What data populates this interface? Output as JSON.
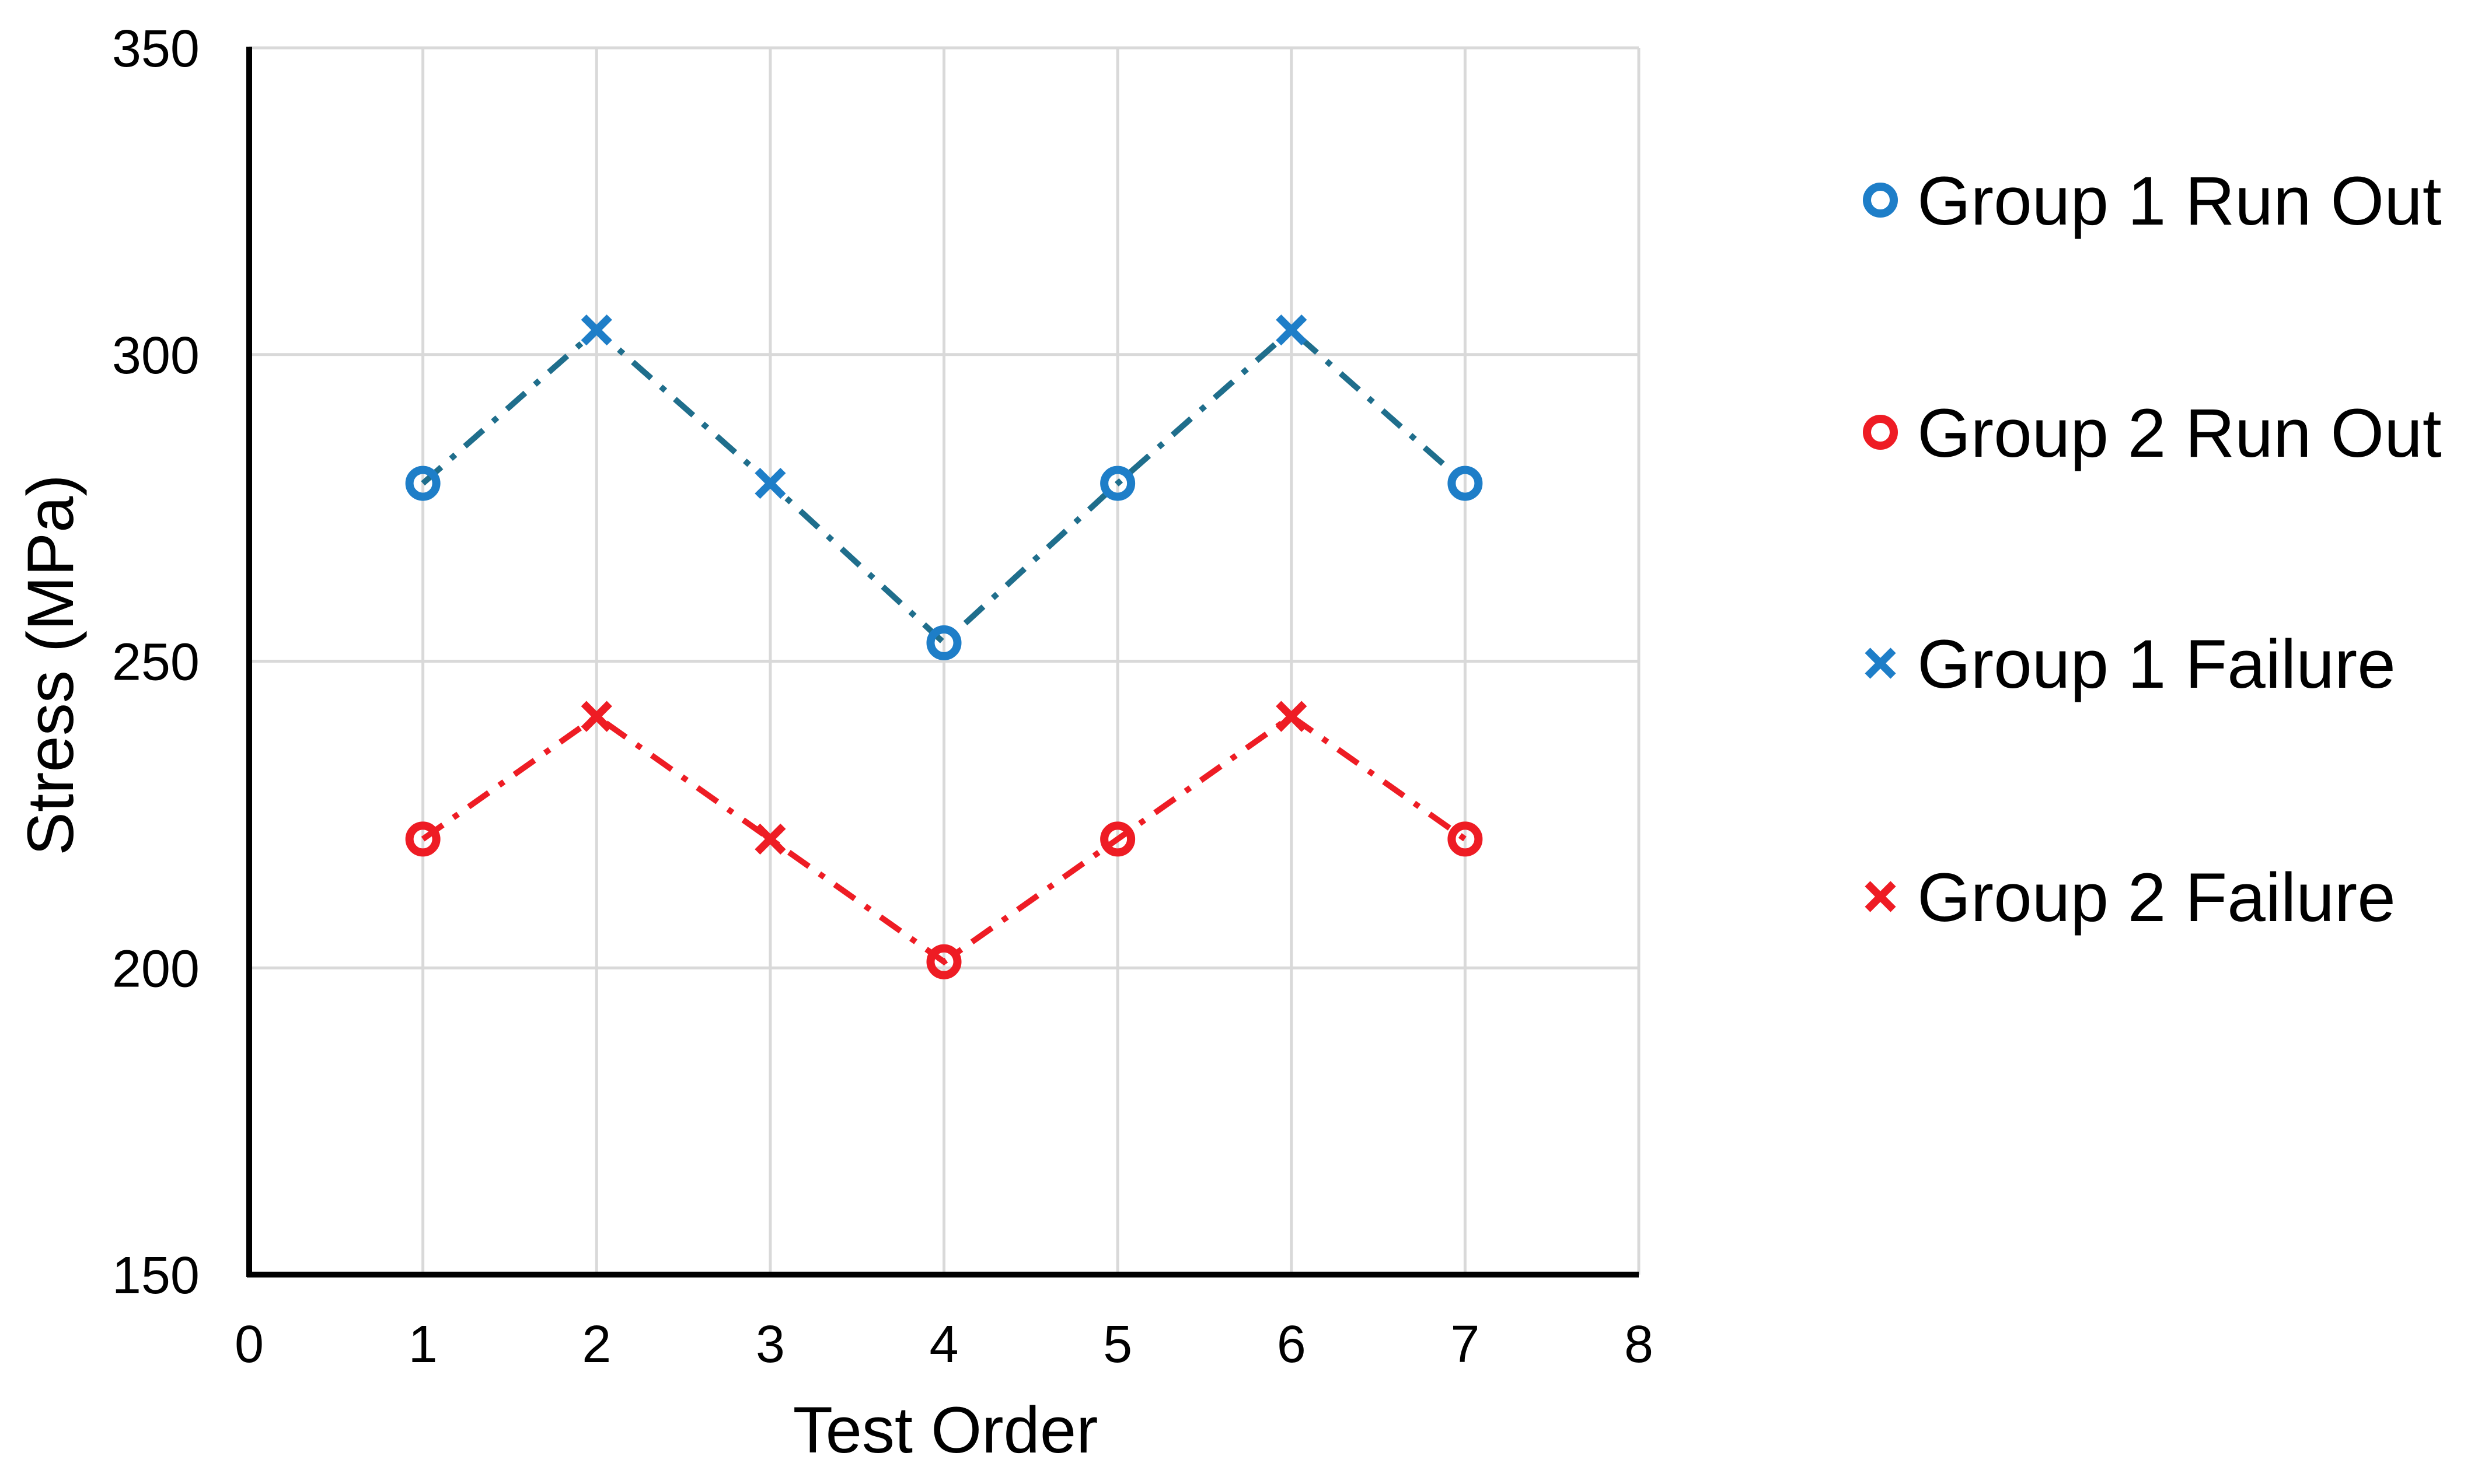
{
  "chart_data": {
    "type": "scatter",
    "title": "",
    "xlabel": "Test Order",
    "ylabel": "Stress (MPa)",
    "xlim": [
      0,
      8
    ],
    "ylim": [
      150,
      350
    ],
    "x_ticks": [
      "0",
      "1",
      "2",
      "3",
      "4",
      "5",
      "6",
      "7",
      "8"
    ],
    "y_ticks": [
      "150",
      "200",
      "250",
      "300",
      "350"
    ],
    "grid": true,
    "legend_position": "right",
    "lines": [
      {
        "group": "Group 1",
        "color": "#1f6e8c",
        "style": "dash-dot",
        "x": [
          1,
          2,
          3,
          4,
          5,
          6,
          7
        ],
        "y": [
          279,
          304,
          279,
          253,
          279,
          304,
          279
        ]
      },
      {
        "group": "Group 2",
        "color": "#ee1c24",
        "style": "dash-dot",
        "x": [
          1,
          2,
          3,
          4,
          5,
          6,
          7
        ],
        "y": [
          221,
          241,
          221,
          201,
          221,
          241,
          221
        ]
      }
    ],
    "series": [
      {
        "name": "Group 1 Run Out",
        "marker": "circle",
        "color": "#1e7ec8",
        "x": [
          1,
          4,
          5,
          7
        ],
        "y": [
          279,
          253,
          279,
          279
        ]
      },
      {
        "name": "Group 2 Run Out",
        "marker": "circle",
        "color": "#ee1c24",
        "x": [
          1,
          4,
          5,
          7
        ],
        "y": [
          221,
          201,
          221,
          221
        ]
      },
      {
        "name": "Group 1 Failure",
        "marker": "x",
        "color": "#1e7ec8",
        "x": [
          2,
          3,
          6
        ],
        "y": [
          304,
          279,
          304
        ]
      },
      {
        "name": "Group 2 Failure",
        "marker": "x",
        "color": "#ee1c24",
        "x": [
          2,
          3,
          6
        ],
        "y": [
          241,
          221,
          241
        ]
      }
    ]
  }
}
